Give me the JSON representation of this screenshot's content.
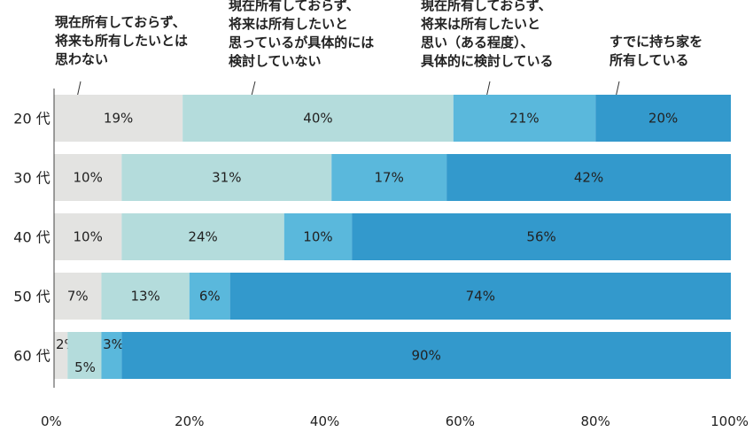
{
  "chart_data": {
    "type": "bar",
    "orientation": "horizontal",
    "stacked": true,
    "categories": [
      "20 代",
      "30 代",
      "40 代",
      "50 代",
      "60 代"
    ],
    "series": [
      {
        "name": [
          "現在所有しておらず、",
          "将来も所有したいとは",
          "思わない"
        ],
        "color": "#e3e3e1",
        "values": [
          19,
          10,
          10,
          7,
          2
        ],
        "labels": [
          "19%",
          "10%",
          "10%",
          "7%",
          "2%"
        ]
      },
      {
        "name": [
          "現在所有しておらず、",
          "将来は所有したいと",
          "思っているが具体的には",
          "検討していない"
        ],
        "color": "#b4dcdc",
        "values": [
          40,
          31,
          24,
          13,
          5
        ],
        "labels": [
          "40%",
          "31%",
          "24%",
          "13%",
          "5%"
        ]
      },
      {
        "name": [
          "現在所有しておらず、",
          "将来は所有したいと",
          "思い（ある程度）、",
          "具体的に検討している"
        ],
        "color": "#5ab8dc",
        "values": [
          21,
          17,
          10,
          6,
          3
        ],
        "labels": [
          "21%",
          "17%",
          "10%",
          "6%",
          "3%"
        ]
      },
      {
        "name": [
          "すでに持ち家を",
          "所有している"
        ],
        "color": "#3399cc",
        "values": [
          20,
          42,
          56,
          74,
          90
        ],
        "labels": [
          "20%",
          "42%",
          "56%",
          "74%",
          "90%"
        ]
      }
    ],
    "xticks": [
      "0%",
      "20%",
      "40%",
      "60%",
      "80%",
      "100%"
    ],
    "xlim": [
      0,
      100
    ],
    "legend_position": "top",
    "grid": false
  }
}
